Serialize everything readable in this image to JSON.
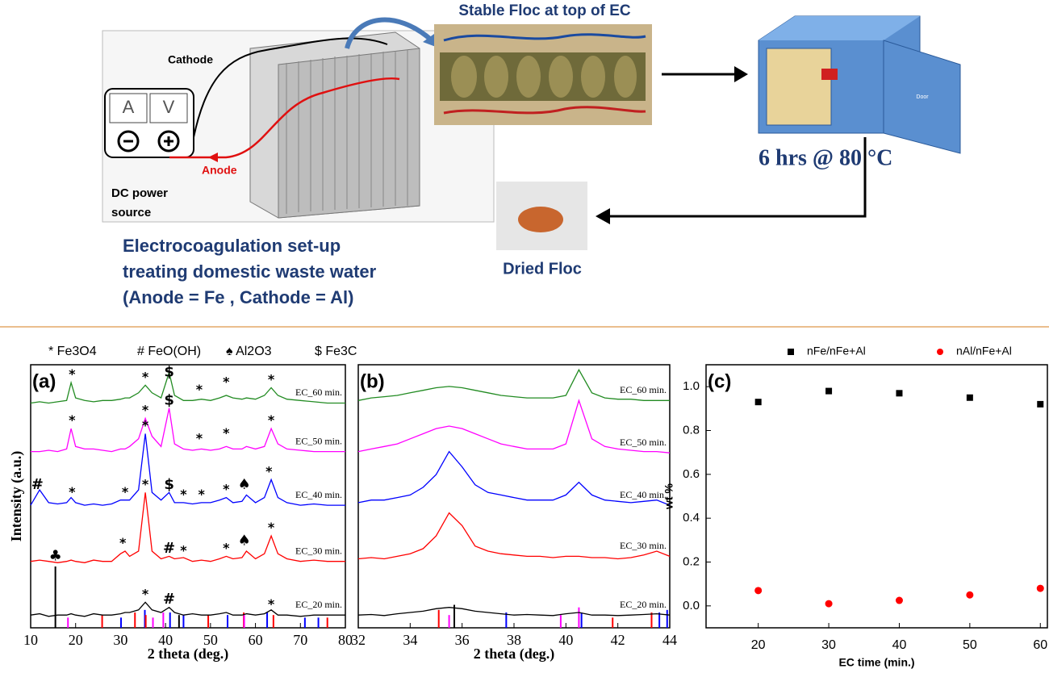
{
  "diagram": {
    "cathode": "Cathode",
    "anode": "Anode",
    "ammeter": "A",
    "voltmeter": "V",
    "power_source": [
      "DC power",
      "source"
    ],
    "floc_photo_caption": "Stable Floc at top of EC",
    "oven_condition": "6 hrs @ 80 °C",
    "oven_door": "Door",
    "dried_floc": "Dried Floc",
    "setup_caption": [
      "Electrocoagulation set-up",
      "treating domestic waste water",
      "(Anode = Fe , Cathode = Al)"
    ]
  },
  "chart_data": [
    {
      "type": "line",
      "panel_label": "(a)",
      "xlabel": "2 theta (deg.)",
      "ylabel": "Intensity (a.u.)",
      "phase_legend": [
        "* Fe3O4",
        "# FeO(OH)",
        "♠ Al2O3",
        "$ Fe3C"
      ],
      "xlim": [
        10,
        80
      ],
      "xticks": [
        10,
        20,
        30,
        40,
        50,
        60,
        70,
        80
      ],
      "ylim": [
        0,
        10.3
      ],
      "x": [
        10,
        12,
        14,
        16,
        18,
        19,
        20,
        22,
        24,
        26,
        28,
        30,
        31,
        32,
        34,
        35.5,
        37,
        39,
        40.8,
        42,
        44,
        46,
        48,
        50,
        52,
        53.5,
        55,
        57,
        58,
        60,
        62,
        63.5,
        65,
        67,
        70,
        73,
        76,
        80
      ],
      "series": [
        {
          "name": "EC_20 min.",
          "color": "#000000",
          "values": [
            0.5,
            0.55,
            0.45,
            0.5,
            0.5,
            0.55,
            0.5,
            0.45,
            0.55,
            0.5,
            0.5,
            0.55,
            0.6,
            0.6,
            0.7,
            1.0,
            0.7,
            0.6,
            0.8,
            0.6,
            0.5,
            0.55,
            0.5,
            0.5,
            0.55,
            0.6,
            0.5,
            0.5,
            0.55,
            0.5,
            0.55,
            0.7,
            0.5,
            0.5,
            0.45,
            0.5,
            0.5,
            0.5
          ]
        },
        {
          "name": "EC_30 min.",
          "color": "#ff0000",
          "values": [
            2.6,
            2.65,
            2.6,
            2.55,
            2.6,
            2.65,
            2.6,
            2.55,
            2.65,
            2.6,
            2.6,
            2.9,
            3.0,
            2.8,
            3.0,
            5.3,
            3.0,
            2.7,
            2.8,
            2.7,
            2.75,
            2.6,
            2.65,
            2.6,
            2.7,
            2.8,
            2.7,
            2.75,
            3.0,
            2.7,
            2.9,
            3.6,
            2.9,
            2.7,
            2.6,
            2.65,
            2.6,
            2.6
          ]
        },
        {
          "name": "EC_40 min.",
          "color": "#0000ff",
          "values": [
            4.8,
            5.4,
            4.9,
            4.85,
            4.9,
            5.1,
            4.9,
            4.8,
            4.85,
            4.8,
            4.85,
            5.0,
            5.0,
            5.0,
            5.4,
            7.6,
            5.3,
            5.0,
            5.3,
            4.9,
            4.9,
            4.85,
            4.9,
            4.9,
            5.0,
            5.1,
            4.9,
            4.95,
            5.2,
            4.9,
            5.1,
            5.8,
            5.1,
            4.9,
            4.8,
            4.85,
            4.8,
            4.8
          ]
        },
        {
          "name": "EC_50 min.",
          "color": "#ff00ff",
          "values": [
            6.9,
            6.9,
            6.95,
            6.9,
            7.0,
            7.8,
            7.1,
            7.0,
            7.0,
            6.95,
            6.9,
            7.0,
            7.0,
            7.1,
            7.4,
            8.2,
            7.5,
            7.1,
            8.6,
            7.2,
            7.0,
            6.95,
            7.0,
            6.95,
            7.0,
            7.1,
            7.0,
            7.0,
            7.1,
            7.0,
            7.1,
            7.8,
            7.2,
            7.0,
            6.95,
            6.9,
            6.9,
            6.9
          ]
        },
        {
          "name": "EC_60 min.",
          "color": "#228b22",
          "values": [
            8.8,
            8.85,
            8.8,
            8.85,
            8.9,
            9.6,
            9.0,
            8.9,
            8.85,
            8.9,
            8.9,
            8.95,
            9.0,
            9.0,
            9.2,
            9.5,
            9.2,
            9.0,
            10.0,
            9.1,
            8.9,
            8.9,
            8.95,
            8.9,
            9.0,
            9.1,
            9.0,
            8.95,
            9.0,
            8.95,
            9.1,
            9.4,
            9.1,
            8.95,
            8.9,
            8.85,
            8.8,
            8.8
          ]
        }
      ],
      "sticks": {
        "x": [
          15.5,
          18.3,
          25.9,
          30.1,
          33.2,
          35.4,
          35.6,
          37.2,
          39.5,
          41.0,
          43.0,
          44.0,
          49.5,
          53.8,
          57.4,
          57.5,
          62.6,
          64,
          71,
          74,
          76
        ],
        "values": [
          2.4,
          0.4,
          0.5,
          0.4,
          0.6,
          0.7,
          0.5,
          0.4,
          0.6,
          0.6,
          0.5,
          0.5,
          0.5,
          0.5,
          0.6,
          0.5,
          0.6,
          0.5,
          0.4,
          0.4,
          0.4
        ],
        "colors": [
          "#000000",
          "#ff00ff",
          "#ff0000",
          "#0000ff",
          "#ff0000",
          "#0000ff",
          "#ff0000",
          "#ff00ff",
          "#ff00ff",
          "#0000ff",
          "#000000",
          "#0000ff",
          "#ff0000",
          "#0000ff",
          "#ff0000",
          "#ff00ff",
          "#0000ff",
          "#ff0000",
          "#0000ff",
          "#0000ff",
          "#ff0000"
        ]
      },
      "annotations": [
        {
          "text": "*",
          "x": 19.2,
          "y": 9.9
        },
        {
          "text": "*",
          "x": 35.5,
          "y": 9.8
        },
        {
          "text": "$",
          "x": 40.8,
          "y": 10.0
        },
        {
          "text": "*",
          "x": 47.5,
          "y": 9.3
        },
        {
          "text": "*",
          "x": 53.5,
          "y": 9.6
        },
        {
          "text": "*",
          "x": 63.5,
          "y": 9.7
        },
        {
          "text": "*",
          "x": 19.2,
          "y": 8.1
        },
        {
          "text": "*",
          "x": 35.5,
          "y": 8.5
        },
        {
          "text": "$",
          "x": 40.8,
          "y": 8.9
        },
        {
          "text": "*",
          "x": 47.5,
          "y": 7.4
        },
        {
          "text": "*",
          "x": 53.5,
          "y": 7.6
        },
        {
          "text": "*",
          "x": 63.5,
          "y": 8.1
        },
        {
          "text": "#",
          "x": 11.5,
          "y": 5.6
        },
        {
          "text": "*",
          "x": 19.2,
          "y": 5.3
        },
        {
          "text": "*",
          "x": 31,
          "y": 5.3
        },
        {
          "text": "*",
          "x": 35.5,
          "y": 7.9
        },
        {
          "text": "$",
          "x": 40.8,
          "y": 5.6
        },
        {
          "text": "*",
          "x": 44,
          "y": 5.2
        },
        {
          "text": "*",
          "x": 48,
          "y": 5.2
        },
        {
          "text": "*",
          "x": 53.5,
          "y": 5.4
        },
        {
          "text": "♠",
          "x": 57.5,
          "y": 5.6
        },
        {
          "text": "*",
          "x": 63,
          "y": 6.1
        },
        {
          "text": "*",
          "x": 30.5,
          "y": 3.3
        },
        {
          "text": "*",
          "x": 35.5,
          "y": 5.6
        },
        {
          "text": "#",
          "x": 40.8,
          "y": 3.1
        },
        {
          "text": "*",
          "x": 44,
          "y": 3.0
        },
        {
          "text": "*",
          "x": 53.5,
          "y": 3.1
        },
        {
          "text": "♠",
          "x": 57.5,
          "y": 3.4
        },
        {
          "text": "*",
          "x": 63.5,
          "y": 3.9
        },
        {
          "text": "♣",
          "x": 15.5,
          "y": 2.8
        },
        {
          "text": "*",
          "x": 35.5,
          "y": 1.3
        },
        {
          "text": "#",
          "x": 40.8,
          "y": 1.1
        },
        {
          "text": "*",
          "x": 63.5,
          "y": 0.9
        }
      ]
    },
    {
      "type": "line",
      "panel_label": "(b)",
      "xlabel": "2 theta (deg.)",
      "xlim": [
        32,
        44
      ],
      "xticks": [
        32,
        34,
        36,
        38,
        40,
        42,
        44
      ],
      "ylim": [
        0,
        10.3
      ],
      "x": [
        32,
        32.5,
        33,
        33.5,
        34,
        34.5,
        35,
        35.5,
        36,
        36.5,
        37,
        37.5,
        38,
        38.5,
        39,
        39.5,
        40,
        40.5,
        41,
        41.5,
        42,
        42.5,
        43,
        43.5,
        44
      ],
      "series": [
        {
          "name": "EC_20 min.",
          "color": "#000000",
          "values": [
            0.5,
            0.52,
            0.48,
            0.55,
            0.6,
            0.65,
            0.75,
            0.8,
            0.75,
            0.65,
            0.6,
            0.55,
            0.5,
            0.52,
            0.5,
            0.48,
            0.55,
            0.6,
            0.5,
            0.5,
            0.48,
            0.5,
            0.52,
            0.55,
            0.5
          ]
        },
        {
          "name": "EC_30 min.",
          "color": "#ff0000",
          "values": [
            2.7,
            2.75,
            2.7,
            2.8,
            2.9,
            3.1,
            3.6,
            4.5,
            4.0,
            3.2,
            3.0,
            2.9,
            2.85,
            2.8,
            2.8,
            2.75,
            2.8,
            2.8,
            2.75,
            2.75,
            2.7,
            2.75,
            2.85,
            3.0,
            2.8
          ]
        },
        {
          "name": "EC_40 min.",
          "color": "#0000ff",
          "values": [
            4.9,
            5.0,
            5.0,
            5.1,
            5.2,
            5.5,
            6.0,
            6.9,
            6.3,
            5.6,
            5.3,
            5.2,
            5.1,
            5.0,
            5.0,
            5.0,
            5.2,
            5.7,
            5.2,
            5.0,
            4.95,
            4.9,
            4.95,
            5.0,
            4.8
          ]
        },
        {
          "name": "EC_50 min.",
          "color": "#ff00ff",
          "values": [
            6.9,
            7.0,
            7.1,
            7.2,
            7.4,
            7.6,
            7.8,
            7.9,
            7.8,
            7.6,
            7.4,
            7.2,
            7.1,
            7.0,
            7.0,
            7.0,
            7.2,
            8.9,
            7.4,
            7.1,
            7.0,
            6.95,
            6.9,
            6.9,
            6.85
          ]
        },
        {
          "name": "EC_60 min.",
          "color": "#228b22",
          "values": [
            8.9,
            9.0,
            9.05,
            9.1,
            9.2,
            9.3,
            9.4,
            9.45,
            9.4,
            9.3,
            9.2,
            9.1,
            9.05,
            9.0,
            9.0,
            9.0,
            9.1,
            10.1,
            9.2,
            9.0,
            8.95,
            8.95,
            8.9,
            8.9,
            8.9
          ]
        }
      ],
      "sticks": {
        "x": [
          35.1,
          35.5,
          35.7,
          37.7,
          39.8,
          40.5,
          40.6,
          41.8,
          43.3,
          43.6,
          43.9
        ],
        "values": [
          0.7,
          0.5,
          0.9,
          0.6,
          0.5,
          0.8,
          0.6,
          0.4,
          0.6,
          0.6,
          0.7
        ],
        "colors": [
          "#ff0000",
          "#ff00ff",
          "#000000",
          "#0000ff",
          "#ff00ff",
          "#ff00ff",
          "#0000ff",
          "#ff0000",
          "#ff0000",
          "#0000ff",
          "#0000ff"
        ]
      }
    },
    {
      "type": "scatter",
      "panel_label": "(c)",
      "xlabel": "EC time (min.)",
      "ylabel": "wt %",
      "legend": "top",
      "xlim": [
        12.6,
        61
      ],
      "xticks": [
        20,
        30,
        40,
        50,
        60
      ],
      "ylim": [
        -0.1,
        1.1
      ],
      "yticks": [
        {
          "value": 0,
          "label": "0.0"
        },
        0.2,
        0.4,
        0.6,
        0.8,
        {
          "value": 1,
          "label": "1.0"
        }
      ],
      "x": [
        20,
        30,
        40,
        50,
        60
      ],
      "series": [
        {
          "name": "nFe/nFe+Al",
          "color": "#000000",
          "marker": "square",
          "values": [
            0.93,
            0.98,
            0.97,
            0.95,
            0.92
          ]
        },
        {
          "name": "nAl/nFe+Al",
          "color": "#ff0000",
          "marker": "circle",
          "values": [
            0.07,
            0.01,
            0.025,
            0.05,
            0.08
          ]
        }
      ]
    }
  ]
}
